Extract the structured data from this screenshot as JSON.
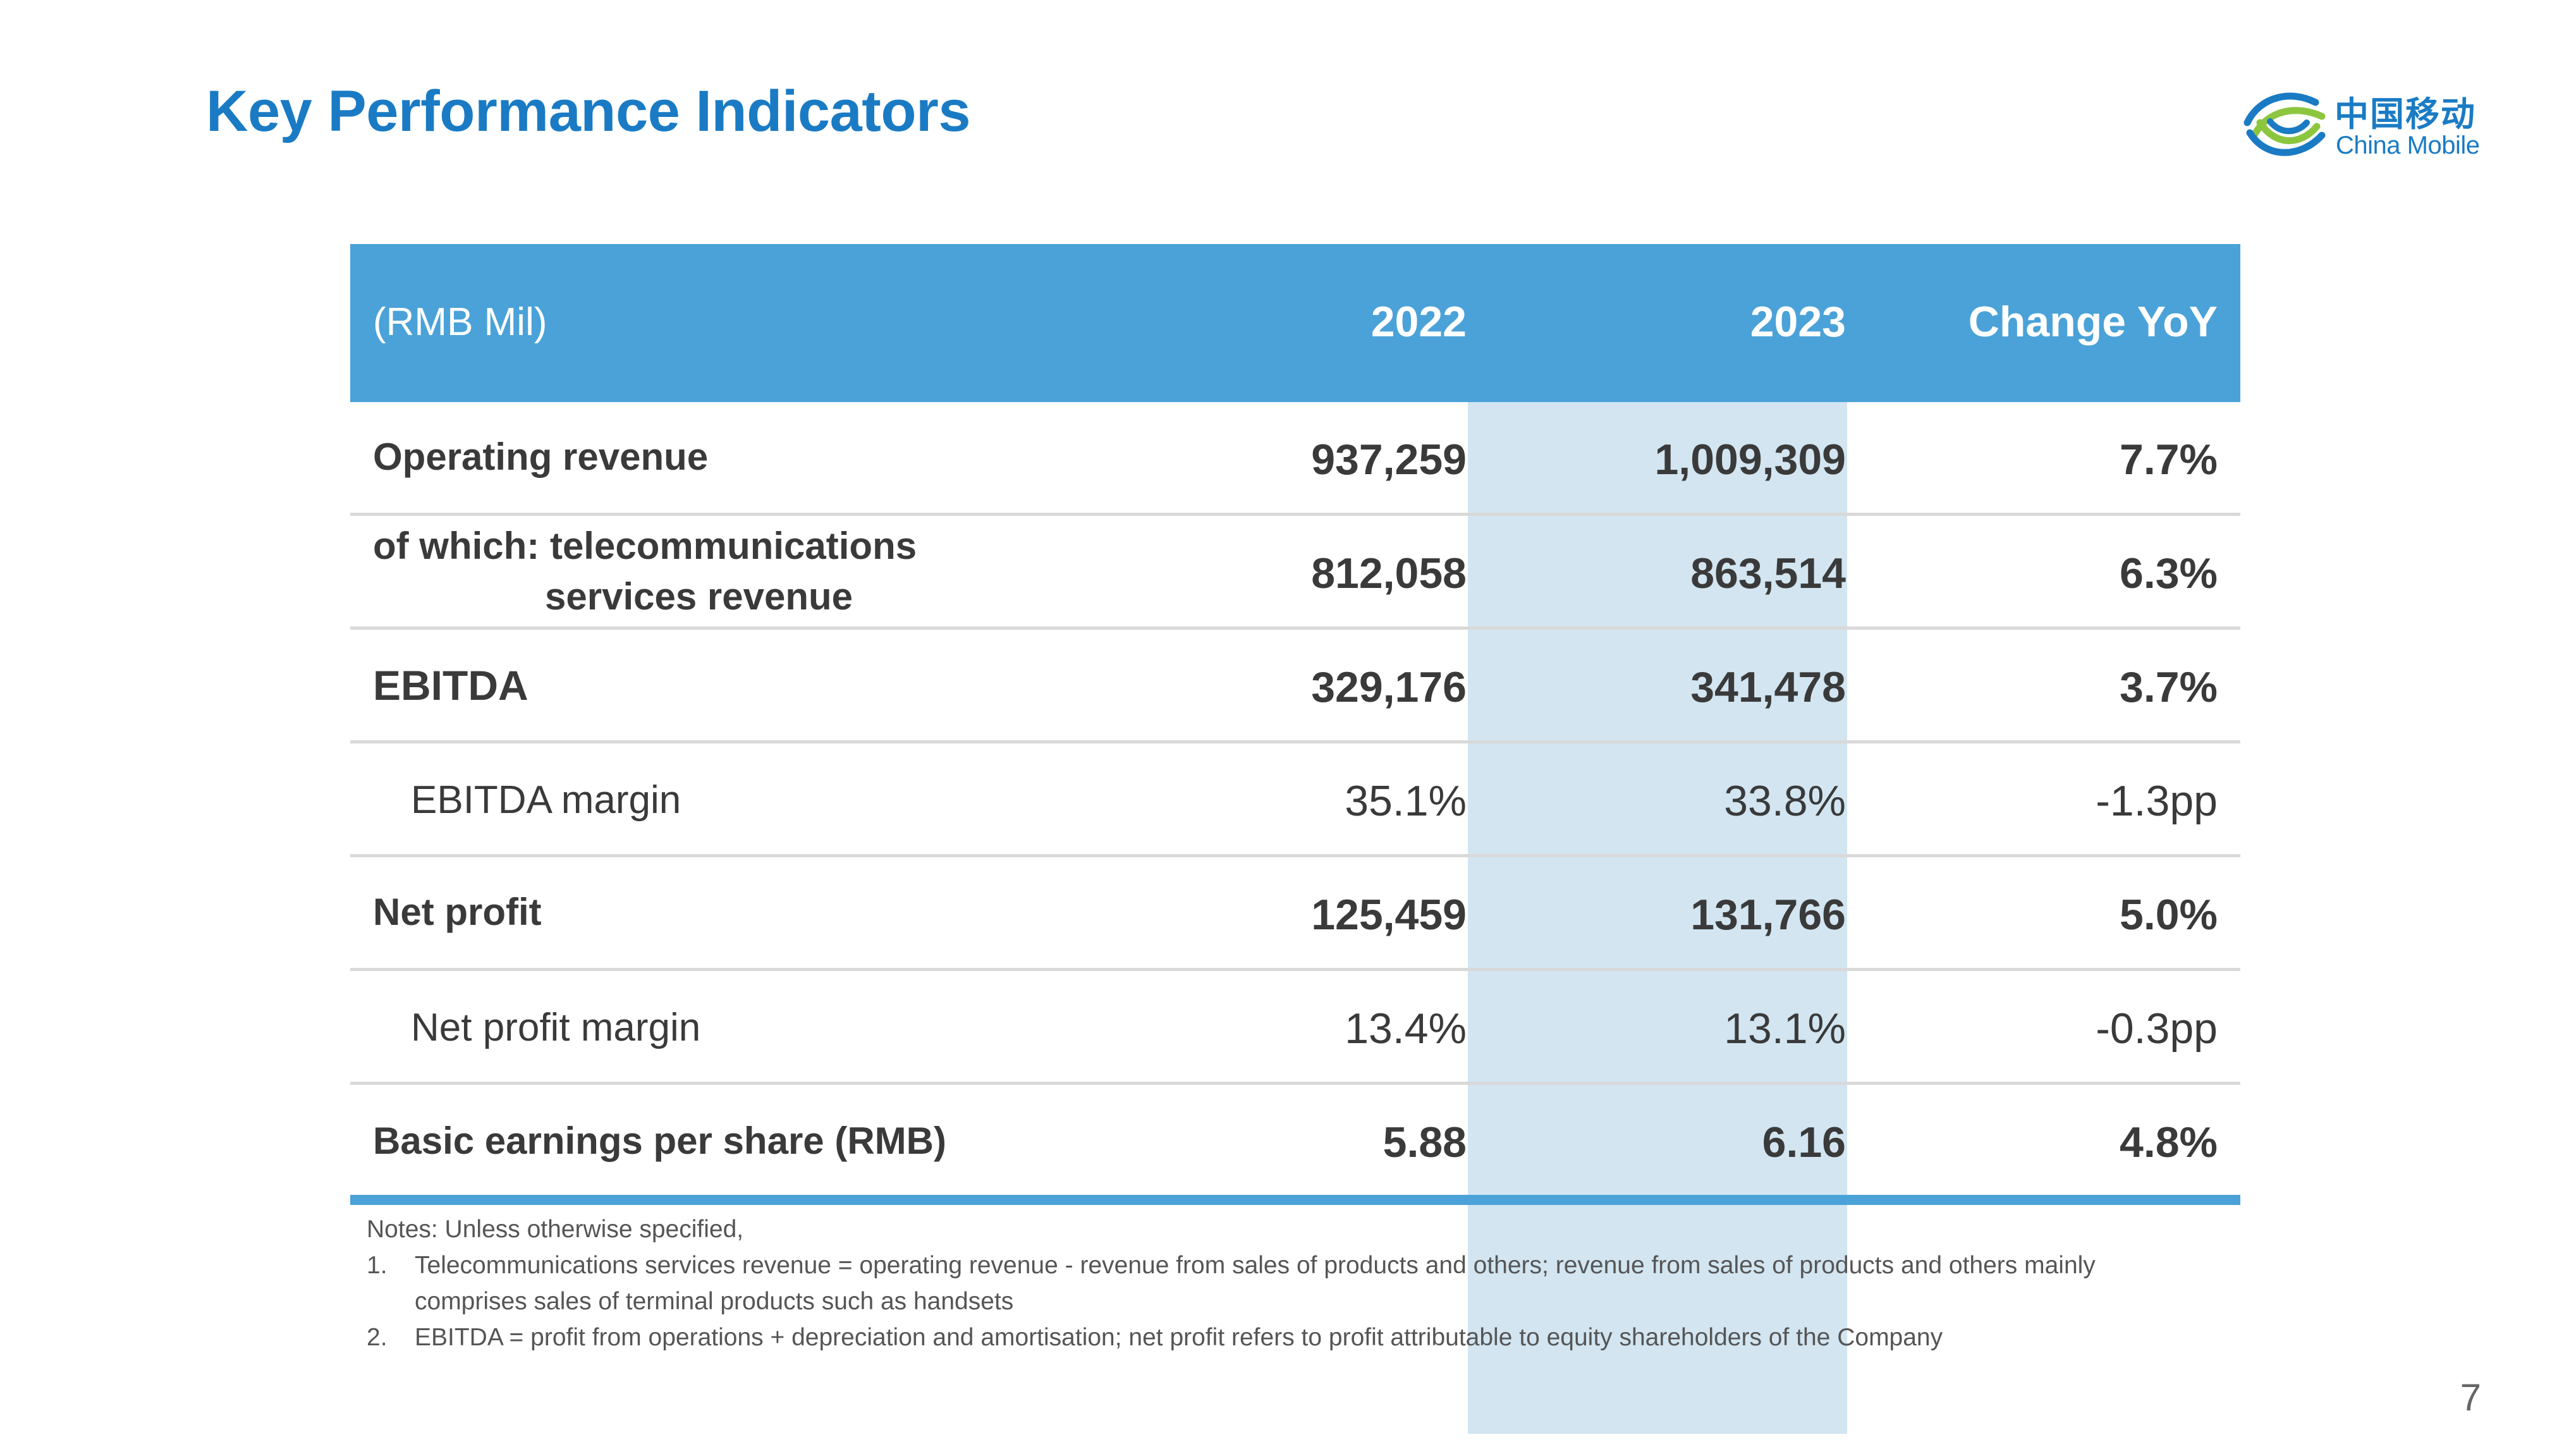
{
  "title": "Key Performance Indicators",
  "logo": {
    "cn": "中国移动",
    "en": "China Mobile",
    "colors": {
      "blue": "#1a7bc4",
      "green": "#8cc63f"
    }
  },
  "table": {
    "header": {
      "unit": "(RMB Mil)",
      "col_2022": "2022",
      "col_2023": "2023",
      "col_change": "Change YoY"
    },
    "rows": [
      {
        "label": "Operating revenue",
        "v2022": "937,259",
        "v2023": "1,009,309",
        "change": "7.7%"
      },
      {
        "label_line1": "of which: telecommunications",
        "label_line2": "services revenue",
        "v2022": "812,058",
        "v2023": "863,514",
        "change": "6.3%"
      },
      {
        "label": "EBITDA",
        "v2022": "329,176",
        "v2023": "341,478",
        "change": "3.7%"
      },
      {
        "label": "EBITDA margin",
        "v2022": "35.1%",
        "v2023": "33.8%",
        "change": "-1.3pp"
      },
      {
        "label": "Net profit",
        "v2022": "125,459",
        "v2023": "131,766",
        "change": "5.0%"
      },
      {
        "label": "Net profit margin",
        "v2022": "13.4%",
        "v2023": "13.1%",
        "change": "-0.3pp"
      },
      {
        "label": "Basic earnings per share (RMB)",
        "v2022": "5.88",
        "v2023": "6.16",
        "change": "4.8%"
      }
    ],
    "colors": {
      "header": "#4aa2d8",
      "highlight": "#d2e5f1"
    }
  },
  "notes": {
    "intro": "Notes: Unless otherwise specified,",
    "items": [
      {
        "num": "1.",
        "line1": "Telecommunications services revenue = operating revenue - revenue from sales of products and others; revenue from sales of products and others mainly",
        "line2": "comprises sales of terminal products such as handsets"
      },
      {
        "num": "2.",
        "line1": "EBITDA = profit from operations + depreciation and amortisation; net profit refers to profit attributable to equity shareholders of the Company"
      }
    ]
  },
  "page_number": "7"
}
